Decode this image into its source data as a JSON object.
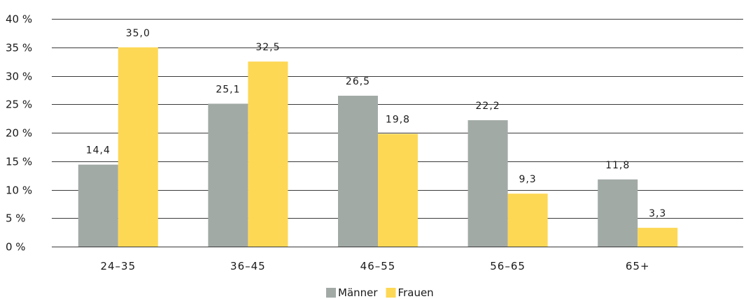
{
  "chart_data": {
    "type": "bar",
    "categories": [
      "24–35",
      "36–45",
      "46–55",
      "56–65",
      "65+"
    ],
    "series": [
      {
        "name": "Männer",
        "color": "#a2aaa6",
        "values": [
          14.4,
          25.1,
          26.5,
          22.2,
          11.8
        ],
        "labels": [
          "14,4",
          "25,1",
          "26,5",
          "22,2",
          "11,8"
        ]
      },
      {
        "name": "Frauen",
        "color": "#fdd855",
        "values": [
          35.0,
          32.5,
          19.8,
          9.3,
          3.3
        ],
        "labels": [
          "35,0",
          "32,5",
          "19,8",
          "9,3",
          "3,3"
        ]
      }
    ],
    "ylim": [
      0,
      40
    ],
    "yticks": [
      0,
      5,
      10,
      15,
      20,
      25,
      30,
      35,
      40
    ],
    "ytick_labels": [
      "0 %",
      "5 %",
      "10 %",
      "15 %",
      "20 %",
      "25 %",
      "30 %",
      "35 %",
      "40 %"
    ],
    "grid": true,
    "legend": "bottom-center"
  }
}
